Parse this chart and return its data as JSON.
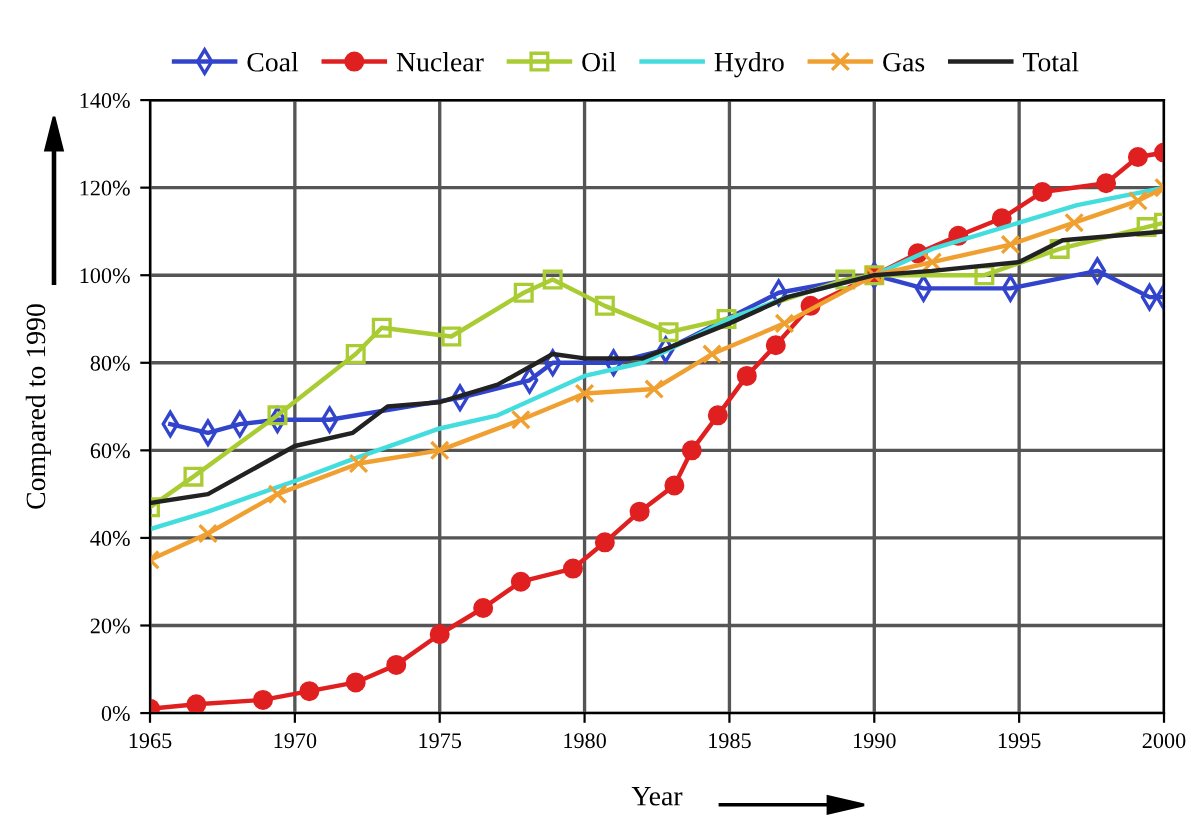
{
  "chart_data": {
    "type": "line",
    "xlabel": "Year",
    "ylabel": "Compared to 1990",
    "legend": "top",
    "grid": true,
    "xlim": [
      1965,
      2000
    ],
    "xticks": [
      1965,
      1970,
      1975,
      1980,
      1985,
      1990,
      1995,
      2000
    ],
    "ylim": [
      0,
      140
    ],
    "yticks": [
      {
        "value": 0,
        "label": "0%"
      },
      {
        "value": 20,
        "label": "20%"
      },
      {
        "value": 40,
        "label": "40%"
      },
      {
        "value": 60,
        "label": "60%"
      },
      {
        "value": 80,
        "label": "80%"
      },
      {
        "value": 100,
        "label": "100%"
      },
      {
        "value": 120,
        "label": "120%"
      },
      {
        "value": 140,
        "label": "140%"
      }
    ],
    "series": [
      {
        "name": "Coal",
        "color": "#3344cc",
        "marker": "diamond",
        "x": [
          1965.7,
          1967,
          1968.1,
          1969.4,
          1971.2,
          1975.7,
          1978.1,
          1978.9,
          1981,
          1982.8,
          1986.7,
          1990,
          1991.7,
          1994.7,
          1997.7,
          1999.5,
          2000
        ],
        "values": [
          66,
          64,
          66,
          67,
          67,
          72,
          76,
          80,
          80,
          83,
          96,
          100,
          97,
          97,
          101,
          95,
          95
        ]
      },
      {
        "name": "Nuclear",
        "color": "#e02020",
        "marker": "circle",
        "x": [
          1965,
          1966.6,
          1968.9,
          1970.5,
          1972.1,
          1973.5,
          1975,
          1976.5,
          1977.8,
          1979.6,
          1980.7,
          1981.9,
          1983.1,
          1983.7,
          1984.6,
          1985.6,
          1986.6,
          1987.8,
          1990,
          1991.5,
          1992.9,
          1994.4,
          1995.8,
          1998,
          1999.1,
          2000
        ],
        "values": [
          1,
          2,
          3,
          5,
          7,
          11,
          18,
          24,
          30,
          33,
          39,
          46,
          52,
          60,
          68,
          77,
          84,
          93,
          100,
          105,
          109,
          113,
          119,
          121,
          127,
          128
        ]
      },
      {
        "name": "Oil",
        "color": "#aacc33",
        "marker": "square",
        "x": [
          1965,
          1966.5,
          1969.4,
          1972.1,
          1973,
          1975.4,
          1977.9,
          1978.9,
          1980.7,
          1982.9,
          1984.9,
          1989,
          1990,
          1993.8,
          1996.4,
          1999.4,
          2000
        ],
        "values": [
          47,
          54,
          68,
          82,
          88,
          86,
          96,
          99,
          93,
          87,
          90,
          99,
          100,
          100,
          106,
          111,
          112
        ]
      },
      {
        "name": "Hydro",
        "color": "#44dddd",
        "marker": "none",
        "x": [
          1965,
          1967,
          1970,
          1972,
          1975,
          1977,
          1980,
          1982,
          1985,
          1987,
          1990,
          1992,
          1995,
          1997,
          2000
        ],
        "values": [
          42,
          46,
          53,
          58,
          65,
          68,
          77,
          80,
          90,
          95,
          100,
          106,
          112,
          116,
          120
        ]
      },
      {
        "name": "Gas",
        "color": "#f0a030",
        "marker": "cross",
        "x": [
          1965,
          1967,
          1969.4,
          1972.2,
          1975,
          1977.8,
          1980,
          1982.4,
          1984.4,
          1986.9,
          1990,
          1992,
          1994.7,
          1996.9,
          1999.1,
          2000
        ],
        "values": [
          35,
          41,
          50,
          57,
          60,
          67,
          73,
          74,
          82,
          89,
          100,
          103,
          107,
          112,
          117,
          120
        ]
      },
      {
        "name": "Total",
        "color": "#222222",
        "marker": "none",
        "x": [
          1965,
          1967,
          1970,
          1972,
          1973.2,
          1975,
          1977,
          1978.9,
          1980,
          1982,
          1985,
          1987,
          1990,
          1992,
          1995,
          1996.5,
          2000
        ],
        "values": [
          48,
          50,
          61,
          64,
          70,
          71,
          75,
          82,
          81,
          81,
          89,
          95,
          100,
          101,
          103,
          108,
          110
        ]
      }
    ]
  }
}
